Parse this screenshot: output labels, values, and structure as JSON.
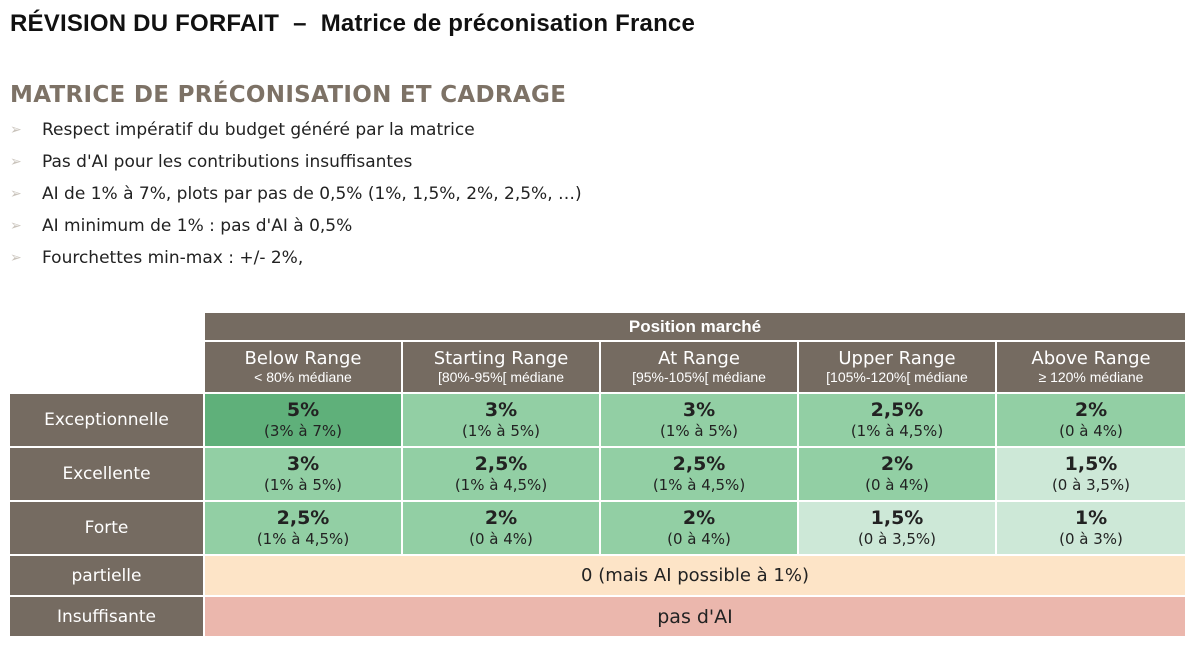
{
  "header": {
    "title_part1": "RÉVISION DU FORFAIT",
    "title_separator": "–",
    "title_part2": "Matrice de préconisation France"
  },
  "section": {
    "title": "MATRICE DE PRÉCONISATION ET CADRAGE",
    "bullet_icon": "arrow-right-icon",
    "bullets": [
      "Respect impératif du budget généré par la matrice",
      "Pas d'AI pour les contributions insuffisantes",
      "AI de 1%  à 7%, plots par pas de 0,5% (1%, 1,5%, 2%, 2,5%, …)",
      "AI minimum de 1% : pas d'AI à 0,5%",
      "Fourchettes min-max : +/- 2%,"
    ]
  },
  "matrix": {
    "top_header": "Position marché",
    "columns": [
      {
        "title": "Below Range",
        "sub": "< 80% médiane"
      },
      {
        "title": "Starting Range",
        "sub": "[80%-95%[ médiane"
      },
      {
        "title": "At Range",
        "sub": "[95%-105%[ médiane"
      },
      {
        "title": "Upper Range",
        "sub": "[105%-120%[ médiane"
      },
      {
        "title": "Above Range",
        "sub": "≥ 120% médiane"
      }
    ],
    "rows": [
      {
        "label": "Exceptionnelle",
        "cells": [
          {
            "pct": "5%",
            "range": "(3% à 7%)"
          },
          {
            "pct": "3%",
            "range": "(1% à 5%)"
          },
          {
            "pct": "3%",
            "range": "(1% à 5%)"
          },
          {
            "pct": "2,5%",
            "range": "(1% à 4,5%)"
          },
          {
            "pct": "2%",
            "range": "(0 à 4%)"
          }
        ]
      },
      {
        "label": "Excellente",
        "cells": [
          {
            "pct": "3%",
            "range": "(1% à 5%)"
          },
          {
            "pct": "2,5%",
            "range": "(1% à 4,5%)"
          },
          {
            "pct": "2,5%",
            "range": "(1% à 4,5%)"
          },
          {
            "pct": "2%",
            "range": "(0 à 4%)"
          },
          {
            "pct": "1,5%",
            "range": "(0 à 3,5%)"
          }
        ]
      },
      {
        "label": "Forte",
        "cells": [
          {
            "pct": "2,5%",
            "range": "(1% à 4,5%)"
          },
          {
            "pct": "2%",
            "range": "(0 à 4%)"
          },
          {
            "pct": "2%",
            "range": "(0 à 4%)"
          },
          {
            "pct": "1,5%",
            "range": "(0 à 3,5%)"
          },
          {
            "pct": "1%",
            "range": "(0  à 3%)"
          }
        ]
      }
    ],
    "row_partielle": {
      "label": "partielle",
      "value": "0 (mais AI possible à 1%)"
    },
    "row_insuffisante": {
      "label": "Insuffisante",
      "value": "pas d'AI"
    },
    "colors": {
      "header": "#756b61",
      "dark_green": "#5fb07a",
      "mid_green": "#92cfa4",
      "light_green": "#cde8d7",
      "peach": "#fde4c7",
      "salmon": "#ebb7ad"
    }
  }
}
